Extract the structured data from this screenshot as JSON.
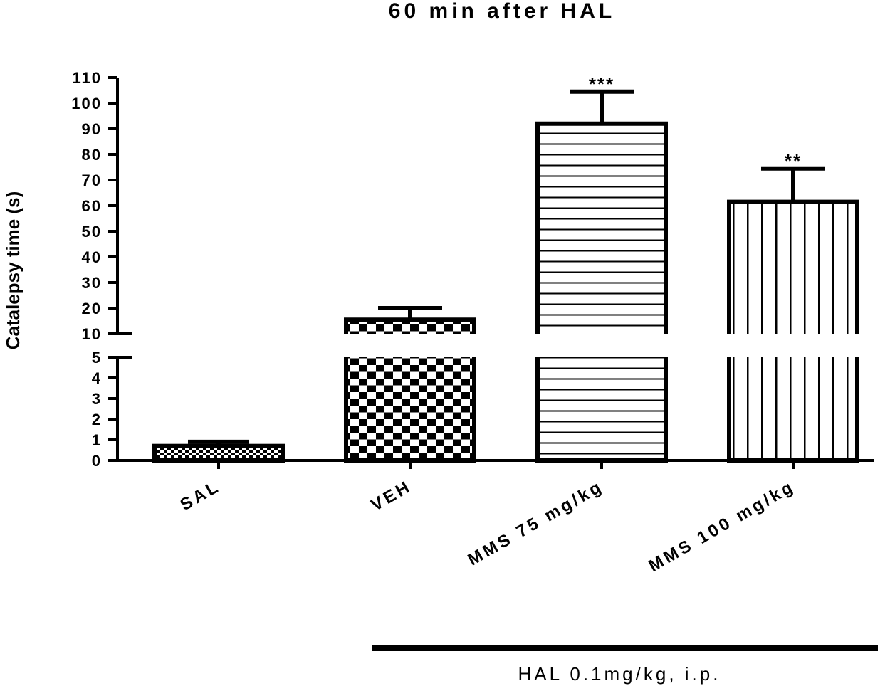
{
  "chart_data": {
    "type": "bar",
    "title": "60 min after HAL",
    "ylabel": "Catalepsy time (s)",
    "xlabel": "",
    "categories": [
      "SAL",
      "VEH",
      "MMS 75 mg/kg",
      "MMS 100 mg/kg"
    ],
    "values": [
      0.7,
      15.5,
      92,
      61.5
    ],
    "errors": [
      0.2,
      4.5,
      12.5,
      13
    ],
    "significance": [
      "",
      "",
      "***",
      "**"
    ],
    "patterns": [
      "fine-checker",
      "checker",
      "horizontal-lines",
      "vertical-lines"
    ],
    "y_axis": {
      "broken": true,
      "lower_range": [
        0,
        5
      ],
      "upper_range": [
        10,
        110
      ],
      "lower_ticks": [
        0,
        1,
        2,
        3,
        4,
        5
      ],
      "upper_ticks": [
        10,
        20,
        30,
        40,
        50,
        60,
        70,
        80,
        90,
        100,
        110
      ]
    },
    "group_annotation": {
      "label": "HAL 0.1mg/kg, i.p.",
      "spans_categories": [
        "VEH",
        "MMS 75 mg/kg",
        "MMS 100 mg/kg"
      ]
    },
    "grid": false,
    "legend": "none",
    "colors": {
      "bar_outline": "#000000",
      "background": "#ffffff"
    }
  }
}
